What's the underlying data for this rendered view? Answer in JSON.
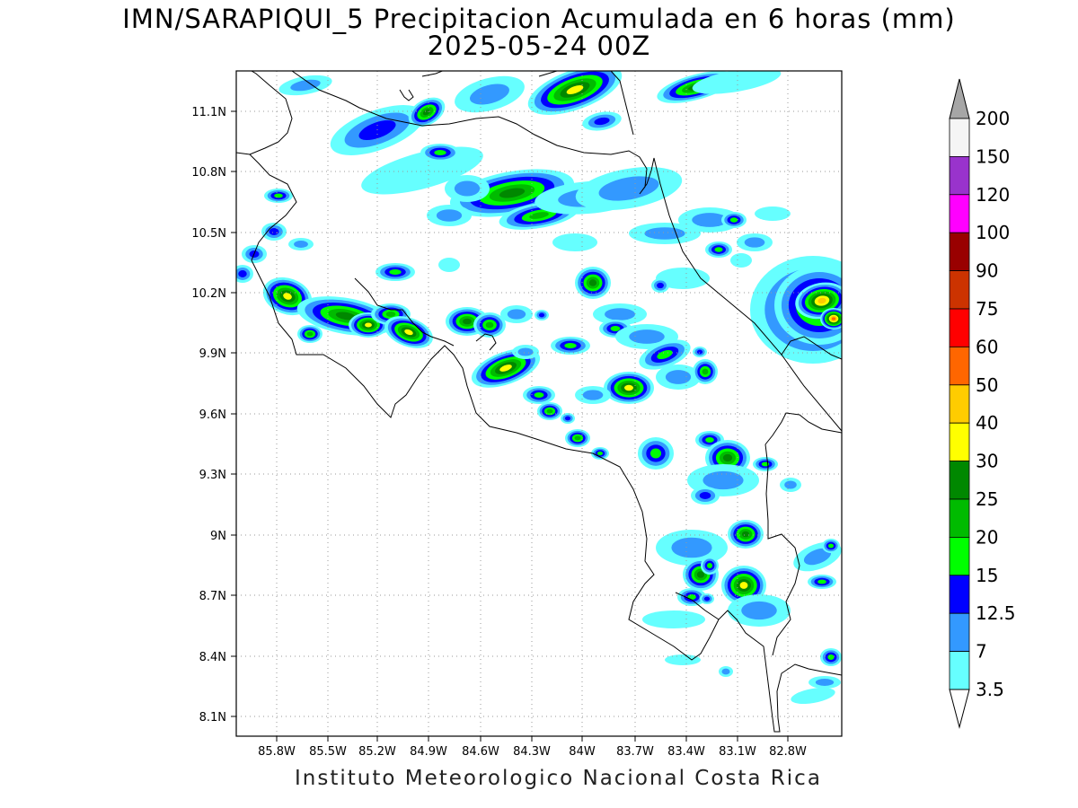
{
  "title": {
    "line1": "IMN/SARAPIQUI_5 Precipitacion Acumulada en 6 horas (mm)",
    "line2": "2025-05-24 00Z"
  },
  "footer": "Instituto Meteorologico Nacional Costa Rica",
  "axes": {
    "lon_ticks": [
      "85.8W",
      "85.5W",
      "85.2W",
      "84.9W",
      "84.6W",
      "84.3W",
      "84W",
      "83.7W",
      "83.4W",
      "83.1W",
      "82.8W"
    ],
    "lat_ticks": [
      "11.1N",
      "10.8N",
      "10.5N",
      "10.2N",
      "9.9N",
      "9.6N",
      "9.3N",
      "9N",
      "8.7N",
      "8.4N",
      "8.1N"
    ],
    "grid": "dotted"
  },
  "colorbar": {
    "labels": [
      "200",
      "150",
      "120",
      "100",
      "90",
      "75",
      "60",
      "50",
      "40",
      "30",
      "25",
      "20",
      "15",
      "12.5",
      "7",
      "3.5"
    ],
    "colors": [
      "#f5f5f5",
      "#9933cc",
      "#ff00ff",
      "#990000",
      "#cc3300",
      "#ff0000",
      "#ff6600",
      "#ffcc00",
      "#ffff00",
      "#008800",
      "#00bb00",
      "#00ff00",
      "#0000ff",
      "#3399ff",
      "#66ffff"
    ],
    "over_color": "#a6a6a6",
    "under_color": "#ffffff"
  },
  "precip_colors": {
    "c35": "#66ffff",
    "c7": "#3399ff",
    "c125": "#0000ff",
    "c15": "#00ff00",
    "c20": "#00bb00",
    "c25": "#008800",
    "c30": "#ffff00",
    "c40": "#ffcc00",
    "c50": "#ff6600"
  }
}
